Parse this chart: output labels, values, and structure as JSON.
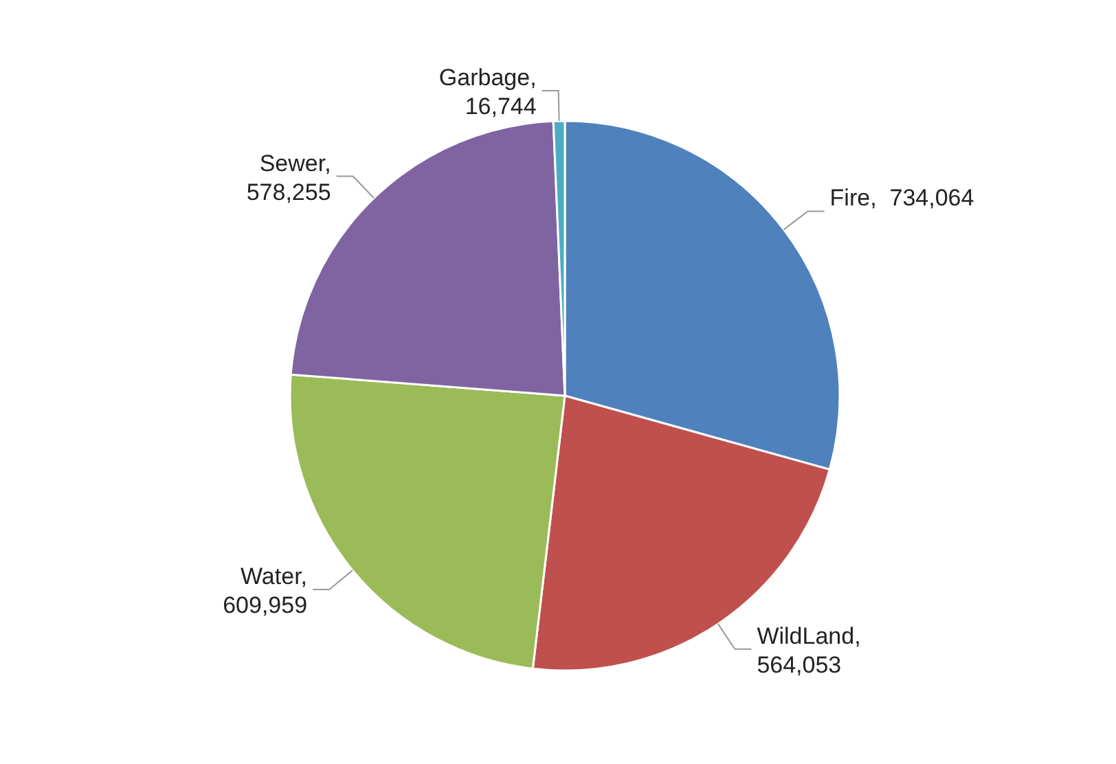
{
  "chart_data": {
    "type": "pie",
    "categories": [
      "Fire",
      "WildLand",
      "Water",
      "Sewer",
      "Garbage"
    ],
    "values": [
      734064,
      564053,
      609959,
      578255,
      16744
    ],
    "value_labels": [
      ",  734,064",
      ", 564,053",
      ", 609,959",
      ", 578,255",
      ", 16,744"
    ],
    "colors": [
      "#4f81bd",
      "#c0504d",
      "#9bbb59",
      "#8064a2",
      "#4bacc6"
    ]
  }
}
